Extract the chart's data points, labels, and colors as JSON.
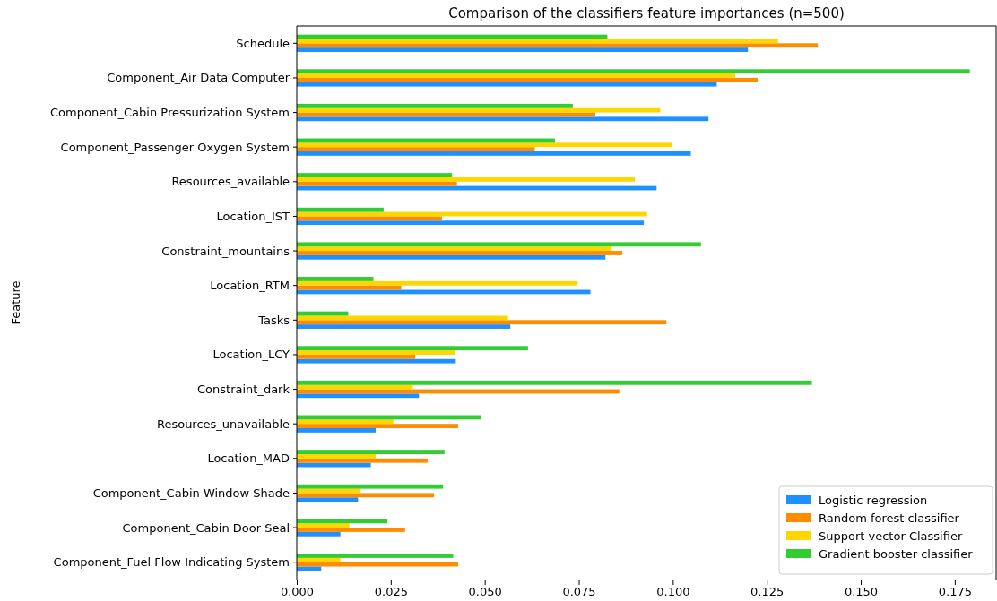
{
  "chart_data": {
    "type": "bar",
    "orientation": "horizontal",
    "title": "Comparison of the classifiers feature importances (n=500)",
    "ylabel": "Feature",
    "categories": [
      "Schedule",
      "Component_Air Data Computer",
      "Component_Cabin Pressurization System",
      "Component_Passenger Oxygen System",
      "Resources_available",
      "Location_IST",
      "Constraint_mountains",
      "Location_RTM",
      "Tasks",
      "Location_LCY",
      "Constraint_dark",
      "Resources_unavailable",
      "Location_MAD",
      "Component_Cabin Window Shade",
      "Component_Cabin Door Seal",
      "Component_Fuel Flow Indicating System"
    ],
    "series": [
      {
        "name": "Logistic regression",
        "color": "#1e90ff",
        "values": [
          0.12,
          0.1117,
          0.1095,
          0.1048,
          0.0957,
          0.0923,
          0.0821,
          0.0781,
          0.0568,
          0.0423,
          0.0325,
          0.021,
          0.0197,
          0.0163,
          0.0116,
          0.0065
        ]
      },
      {
        "name": "Random forest classifier",
        "color": "#ff8c00",
        "values": [
          0.1386,
          0.1226,
          0.0794,
          0.0633,
          0.0426,
          0.0386,
          0.0866,
          0.0278,
          0.0983,
          0.0315,
          0.0858,
          0.0429,
          0.0348,
          0.0365,
          0.0288,
          0.0429
        ]
      },
      {
        "name": "Support vector Classifier",
        "color": "#ffd700",
        "values": [
          0.128,
          0.1166,
          0.0967,
          0.0997,
          0.0899,
          0.0932,
          0.0838,
          0.0747,
          0.0562,
          0.042,
          0.0309,
          0.0257,
          0.021,
          0.017,
          0.014,
          0.0116
        ]
      },
      {
        "name": "Gradient booster classifier",
        "color": "#32cd32",
        "values": [
          0.0826,
          0.179,
          0.0734,
          0.0687,
          0.0413,
          0.0231,
          0.1075,
          0.0204,
          0.0137,
          0.0615,
          0.137,
          0.0491,
          0.0393,
          0.0389,
          0.0241,
          0.0416
        ]
      }
    ],
    "xlim": [
      0,
      0.186
    ],
    "xticks": [
      {
        "value": 0,
        "label": "0.000"
      },
      {
        "value": 0.025,
        "label": "0.025"
      },
      {
        "value": 0.05,
        "label": "0.050"
      },
      {
        "value": 0.075,
        "label": "0.075"
      },
      {
        "value": 0.1,
        "label": "0.100"
      },
      {
        "value": 0.125,
        "label": "0.125"
      },
      {
        "value": 0.15,
        "label": "0.150"
      },
      {
        "value": 0.175,
        "label": "0.175"
      }
    ],
    "legend": "bottom right"
  }
}
